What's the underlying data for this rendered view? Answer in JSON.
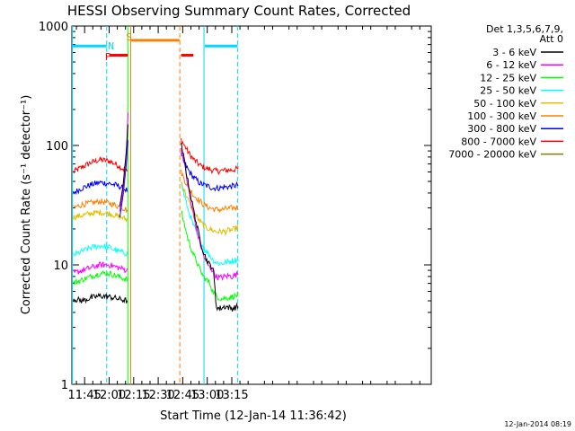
{
  "chart_data": {
    "type": "line",
    "title": "HESSI Observing Summary Count Rates, Corrected",
    "xlabel": "Start Time (12-Jan-14 11:36:42)",
    "ylabel": "Corrected Count Rate (s⁻¹ detector⁻¹)",
    "y_scale": "log",
    "ylim": [
      1,
      1000
    ],
    "xlim_minutes_of_day": [
      697.2,
      917.0
    ],
    "x_tick_labels": [
      "11:45",
      "12:00",
      "12:15",
      "12:30",
      "12:45",
      "13:00",
      "13:15"
    ],
    "y_tick_labels": [
      "1",
      "10",
      "100",
      "1000"
    ],
    "grid": false,
    "legend_placement": "right",
    "legend_header": [
      "Det 1,3,5,6,7,9,",
      "Att 0"
    ],
    "timestamp": "12-Jan-2014 08:19",
    "region_markers": [
      {
        "label": "N",
        "type": "night",
        "color": "#00d8ff"
      },
      {
        "label": "F",
        "type": "flare",
        "color": "#ff0000"
      },
      {
        "label": "S",
        "type": "saa",
        "color": "#ff8000"
      }
    ],
    "series": [
      {
        "name": "3 - 6 keV",
        "color": "#000000",
        "pre": [
          5.2,
          5.0,
          5.3,
          5.5,
          5.4,
          5.2,
          5.0
        ],
        "post": [
          100,
          75,
          52,
          38,
          28,
          21,
          16,
          13,
          11,
          10,
          9.5,
          4.5,
          4.3,
          4.4,
          4.5,
          4.4,
          4.3,
          4.4,
          4.5
        ]
      },
      {
        "name": "6 - 12 keV",
        "color": "#ff00ff",
        "pre": [
          8.5,
          9.0,
          9.5,
          10.0,
          10.0,
          9.5,
          9.0
        ],
        "post": [
          95,
          70,
          48,
          34,
          25,
          19,
          15,
          12,
          10.5,
          9.5,
          9.0,
          8.0,
          7.8,
          7.9,
          8.0,
          8.1,
          8.0,
          8.2,
          8.5
        ]
      },
      {
        "name": "12 - 25 keV",
        "color": "#00ff00",
        "pre": [
          7.0,
          7.5,
          8.0,
          8.5,
          8.5,
          8.0,
          7.5
        ],
        "post": [
          28,
          22,
          17,
          14,
          12,
          10.5,
          9.0,
          8.0,
          7.5,
          7.0,
          6.0,
          5.5,
          5.3,
          5.2,
          5.3,
          5.3,
          5.4,
          5.5,
          5.6
        ]
      },
      {
        "name": "25 - 50 keV",
        "color": "#00ffff",
        "pre": [
          12,
          13,
          14,
          14.5,
          14,
          13,
          12.5
        ],
        "post": [
          48,
          38,
          30,
          25,
          21,
          18,
          16,
          14,
          13,
          12,
          11,
          10.5,
          10.3,
          10.3,
          10.5,
          10.6,
          10.8,
          11.0,
          11.2
        ]
      },
      {
        "name": "50 - 100 keV",
        "color": "#e0c000",
        "pre": [
          25,
          26,
          27,
          27.5,
          27,
          25.5,
          24
        ],
        "post": [
          50,
          42,
          36,
          31,
          28,
          25,
          23,
          21.5,
          20.5,
          20,
          19.5,
          19,
          19,
          19,
          19,
          19.5,
          19.5,
          20,
          21
        ]
      },
      {
        "name": "100 - 300 keV",
        "color": "#ff8000",
        "pre": [
          30,
          32,
          33,
          34,
          33,
          31,
          29
        ],
        "post": [
          60,
          52,
          46,
          42,
          38,
          36,
          34,
          32,
          31,
          30,
          29.5,
          29,
          29,
          29,
          29.5,
          29.5,
          30,
          30,
          30.5
        ]
      },
      {
        "name": "300 - 800 keV",
        "color": "#0000ff",
        "pre": [
          40,
          44,
          47,
          49,
          48,
          46,
          42
        ],
        "post": [
          82,
          72,
          64,
          58,
          54,
          51,
          48,
          47,
          46,
          45,
          44,
          44,
          44,
          44.5,
          45,
          45,
          45.5,
          46,
          47
        ]
      },
      {
        "name": "800 - 7000 keV",
        "color": "#ff0000",
        "pre": [
          60,
          66,
          72,
          76,
          74,
          68,
          60
        ],
        "post": [
          112,
          100,
          90,
          82,
          76,
          72,
          68,
          66,
          64,
          63,
          62,
          61,
          61,
          61.5,
          62,
          62,
          62.5,
          63,
          64
        ]
      },
      {
        "name": "7000 - 20000 keV",
        "color": "#808000",
        "pre": [],
        "post": []
      }
    ]
  }
}
